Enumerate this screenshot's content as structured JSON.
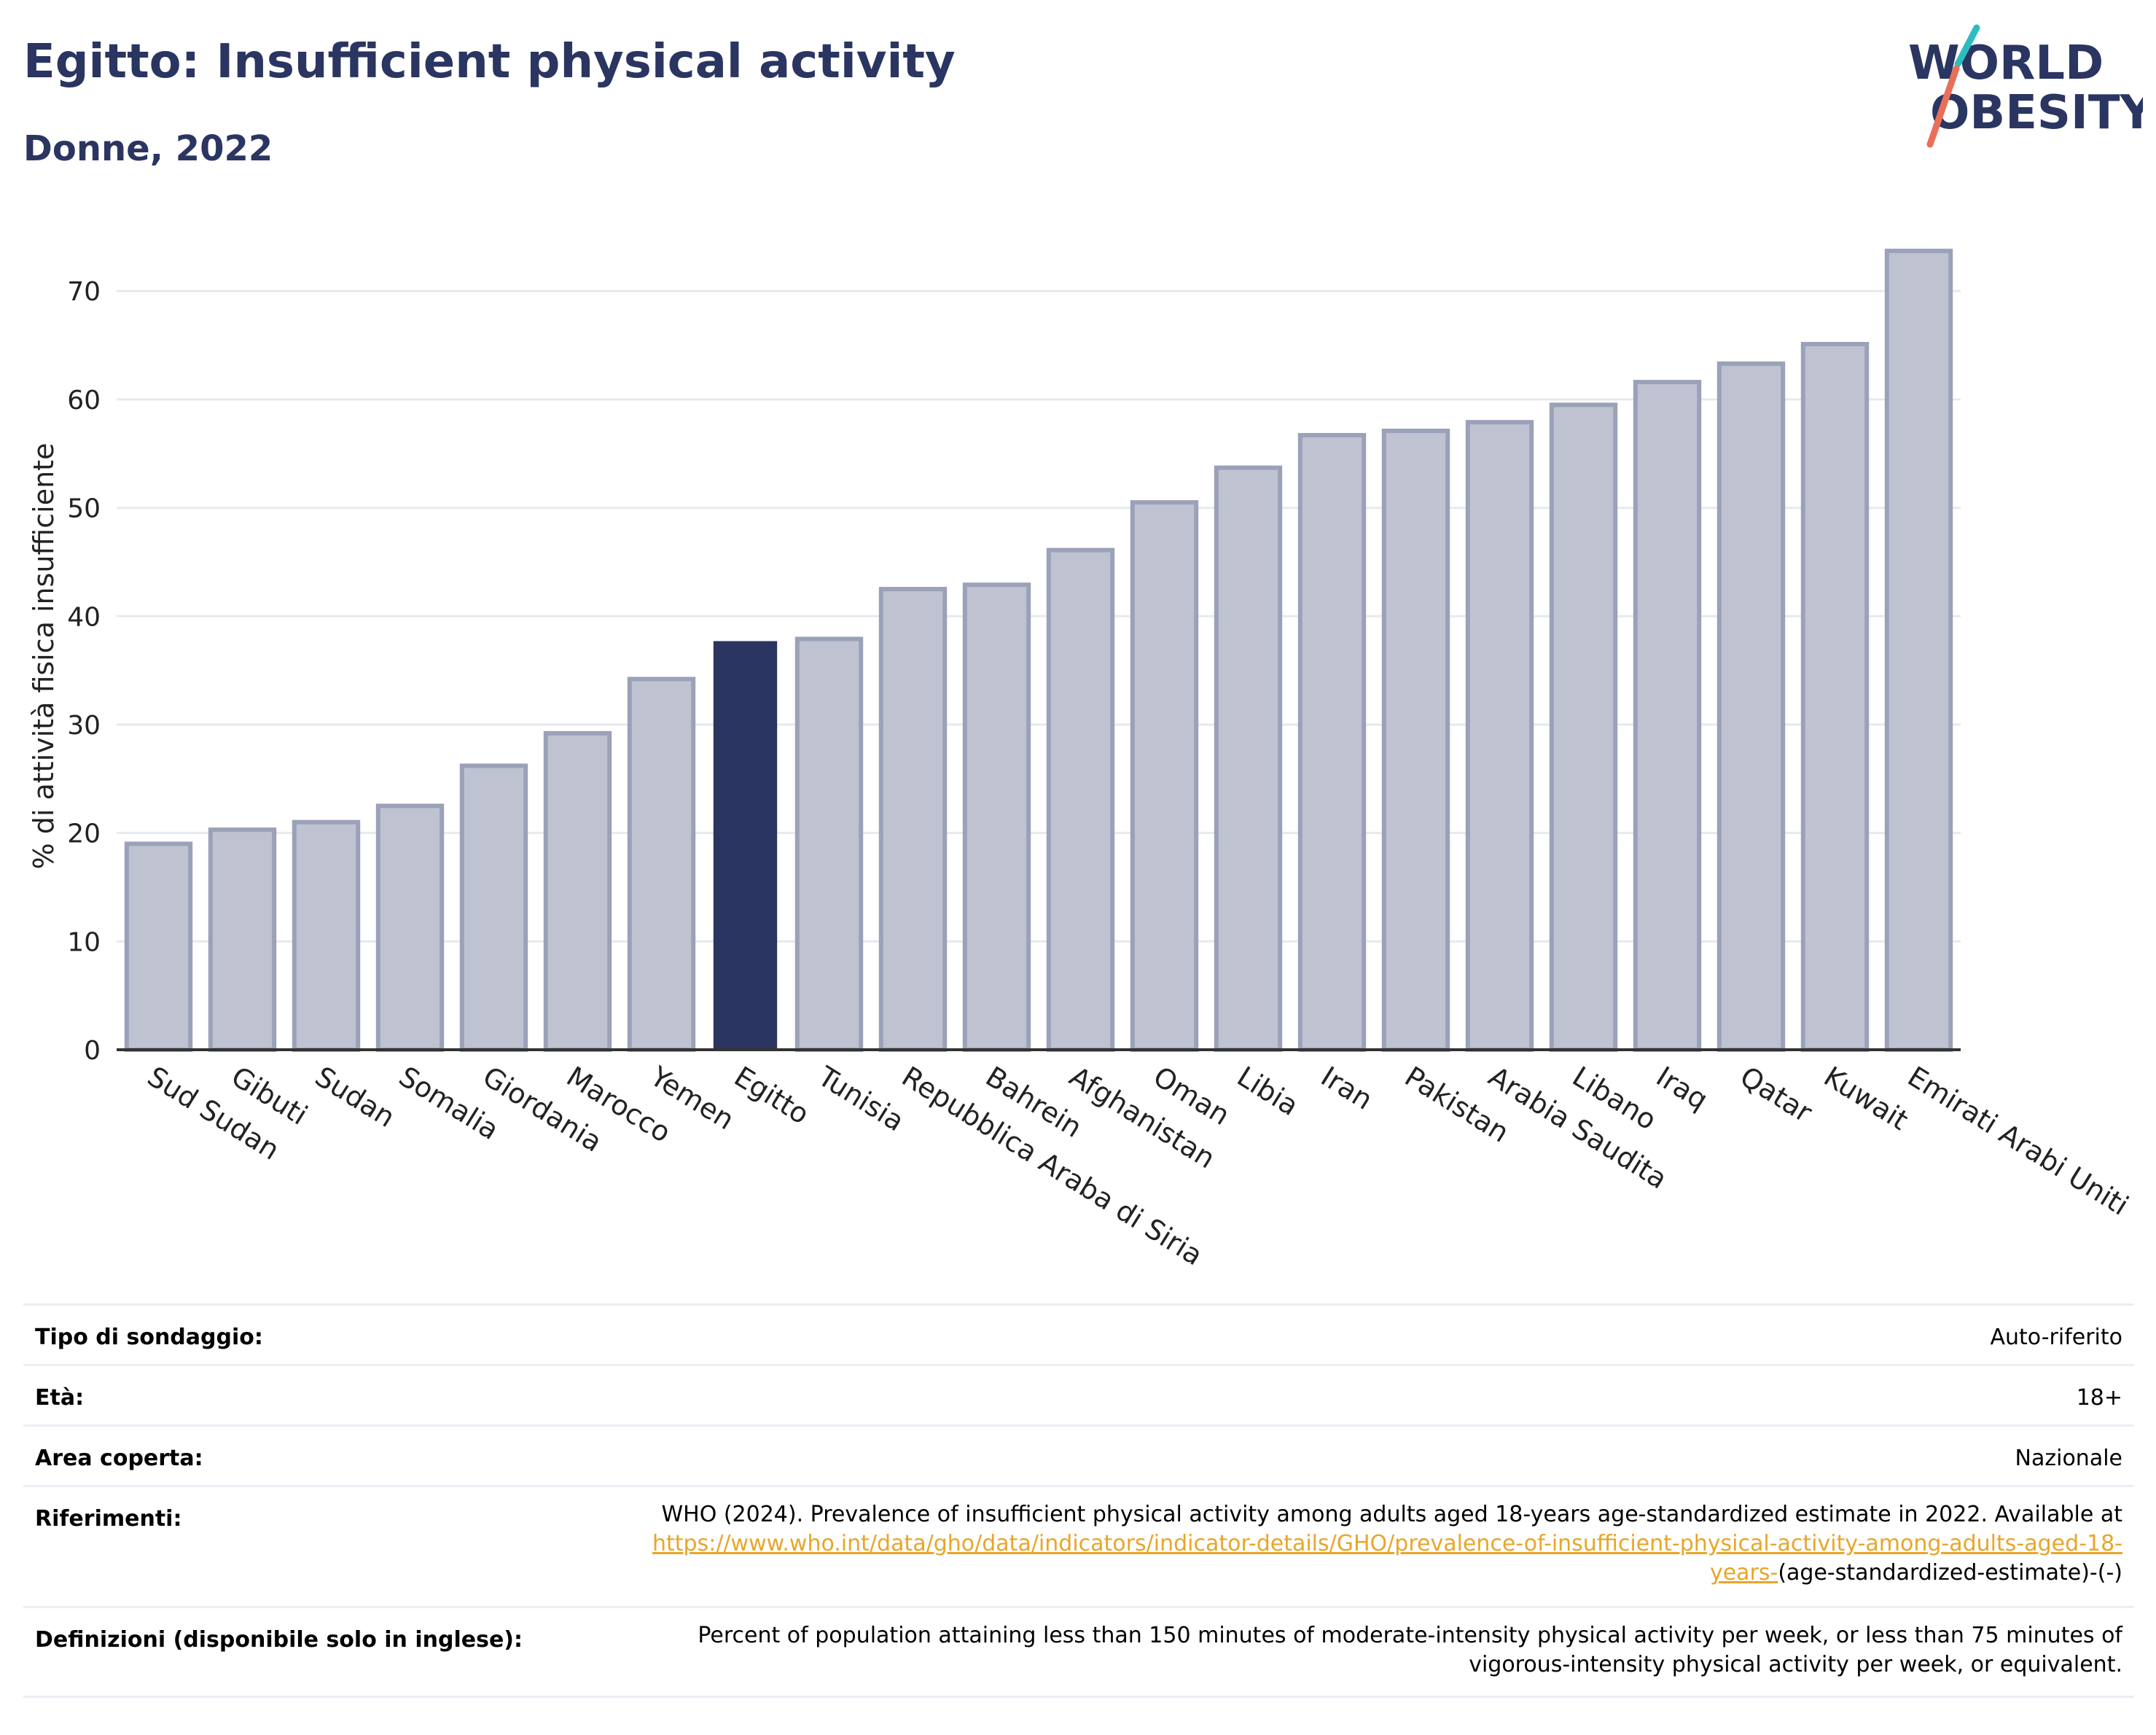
{
  "header": {
    "title": "Egitto: Insufficient physical activity",
    "subtitle": "Donne, 2022"
  },
  "logo": {
    "line1": "WORLD",
    "line2": "OBESITY"
  },
  "chart_data": {
    "type": "bar",
    "ylabel": "% di attività fisica insufficiente",
    "ylim": [
      0,
      76
    ],
    "yticks": [
      0,
      10,
      20,
      30,
      40,
      50,
      60,
      70
    ],
    "grid": true,
    "highlight": "Egitto",
    "colors": {
      "bar": "#bfc3d1",
      "bar_edge": "#9aa1b8",
      "highlight": "#2a3561",
      "grid": "#e8e9ef"
    },
    "categories": [
      "Sud Sudan",
      "Gibuti",
      "Sudan",
      "Somalia",
      "Giordania",
      "Marocco",
      "Yemen",
      "Egitto",
      "Tunisia",
      "Repubblica Araba di Siria",
      "Bahrein",
      "Afghanistan",
      "Oman",
      "Libia",
      "Iran",
      "Pakistan",
      "Arabia Saudita",
      "Libano",
      "Iraq",
      "Qatar",
      "Kuwait",
      "Emirati Arabi Uniti"
    ],
    "values": [
      19.0,
      20.3,
      21.0,
      22.5,
      26.2,
      29.2,
      34.2,
      37.7,
      37.9,
      42.5,
      42.9,
      46.1,
      50.5,
      53.7,
      56.7,
      57.1,
      57.9,
      59.5,
      61.6,
      63.3,
      65.1,
      73.7
    ]
  },
  "meta": {
    "survey_label": "Tipo di sondaggio:",
    "survey_value": "Auto-riferito",
    "age_label": "Età:",
    "age_value": "18+",
    "area_label": "Area coperta:",
    "area_value": "Nazionale",
    "ref_label": "Riferimenti:",
    "ref_text": "WHO (2024). Prevalence of insufficient physical activity among adults aged 18-years age-standardized estimate in 2022. Available at ",
    "ref_link": "https://www.who.int/data/gho/data/indicators/indicator-details/GHO/prevalence-of-insufficient-physical-activity-among-adults-aged-18-years-",
    "ref_tail": "(age-standardized-estimate)-(-)",
    "def_label": "Definizioni (disponibile solo in inglese):",
    "def_value": "Percent of population attaining less than 150 minutes of moderate-intensity physical activity per week, or less than 75 minutes of vigorous-intensity physical activity per week, or equivalent."
  }
}
